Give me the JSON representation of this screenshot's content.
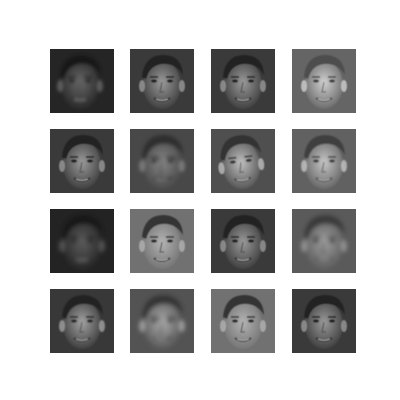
{
  "figure": {
    "background": "#ffffff",
    "rows": 4,
    "cols": 4,
    "tone": "grayscale"
  },
  "faces": [
    {
      "variant": "dark-blurred-left-shift"
    },
    {
      "variant": "smiling-frontal"
    },
    {
      "variant": "smiling-frontal"
    },
    {
      "variant": "bright-smiling-frontal"
    },
    {
      "variant": "smiling-frontal"
    },
    {
      "variant": "ghosted-double-exposure"
    },
    {
      "variant": "bright-head-tilted"
    },
    {
      "variant": "bright-frontal"
    },
    {
      "variant": "dark-blurred"
    },
    {
      "variant": "frontal-light-bg"
    },
    {
      "variant": "smiling-frontal"
    },
    {
      "variant": "faint-blurred"
    },
    {
      "variant": "frontal-smiling"
    },
    {
      "variant": "ghosted-blurred"
    },
    {
      "variant": "frontal-light-bg"
    },
    {
      "variant": "smiling-frontal"
    }
  ]
}
